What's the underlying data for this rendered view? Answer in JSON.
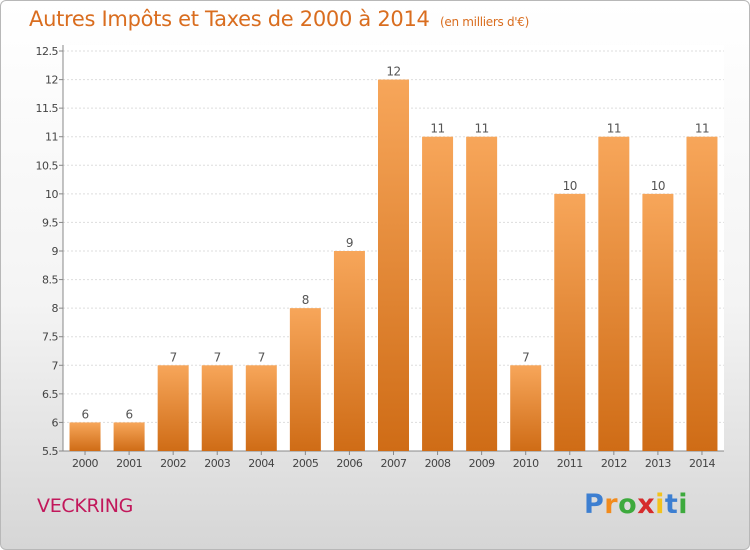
{
  "title": "Autres Impôts et Taxes de 2000 à 2014",
  "subtitle": "(en milliers d'€)",
  "city": "VECKRING",
  "logo": {
    "letters": [
      "P",
      "r",
      "o",
      "x",
      "i",
      "t",
      "i"
    ],
    "colors": [
      "#3d7fd1",
      "#f28b1c",
      "#3daa3d",
      "#d62b2b",
      "#f2c21c",
      "#3d7fd1",
      "#3daa3d"
    ]
  },
  "colors": {
    "bar_top": "#f7a65a",
    "bar_bottom": "#cf6c16",
    "grid": "#dddddd",
    "title": "#d96d1f",
    "city": "#c2185b"
  },
  "chart_data": {
    "type": "bar",
    "title": "Autres Impôts et Taxes de 2000 à 2014",
    "xlabel": "",
    "ylabel": "",
    "categories": [
      "2000",
      "2001",
      "2002",
      "2003",
      "2004",
      "2005",
      "2006",
      "2007",
      "2008",
      "2009",
      "2010",
      "2011",
      "2012",
      "2013",
      "2014"
    ],
    "values": [
      6,
      6,
      7,
      7,
      7,
      8,
      9,
      12,
      11,
      11,
      7,
      10,
      11,
      10,
      11
    ],
    "ylim": [
      5.5,
      12.5
    ],
    "yticks": [
      "5.5",
      "6",
      "6.5",
      "7",
      "7.5",
      "8",
      "8.5",
      "9",
      "9.5",
      "10",
      "10.5",
      "11",
      "11.5",
      "12",
      "12.5"
    ],
    "grid": true,
    "legend": "none"
  }
}
